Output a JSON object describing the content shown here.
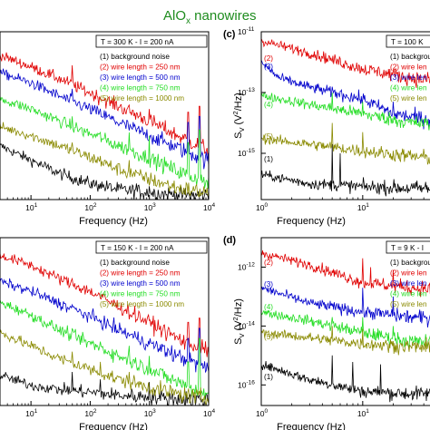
{
  "figure_title": "AlO",
  "figure_title_sub": "x",
  "figure_title_rest": " nanowires",
  "colors": {
    "title": "#1e8c1e",
    "series": [
      "#000000",
      "#e00000",
      "#0000cc",
      "#22dd22",
      "#8a8a00"
    ]
  },
  "chart_data": [
    {
      "type": "line",
      "panel": "a",
      "panel_label": "",
      "condition": "T = 300 K - I = 200 nA",
      "xlabel": "Frequency (Hz)",
      "ylabel": "",
      "log_x": true,
      "log_y": true,
      "xlim": [
        3,
        10000
      ],
      "ylim": [
        1e-15,
        1e-10
      ],
      "x_ticks": [
        {
          "v": 10,
          "l": "10",
          "e": "1"
        },
        {
          "v": 100,
          "l": "10",
          "e": "2"
        },
        {
          "v": 1000,
          "l": "10",
          "e": "3"
        },
        {
          "v": 10000,
          "l": "10",
          "e": "4"
        }
      ],
      "y_ticks": [],
      "series": [
        {
          "name": "(1) background noise",
          "points": [
            [
              3,
              4e-14
            ],
            [
              10,
              1.5e-14
            ],
            [
              30,
              6e-15
            ],
            [
              100,
              3e-15
            ],
            [
              300,
              2e-15
            ],
            [
              1000,
              1.6e-15
            ],
            [
              3000,
              1.4e-15
            ],
            [
              10000,
              1.3e-15
            ]
          ],
          "spikes": [
            [
              50,
              4e-15
            ],
            [
              150,
              3e-15
            ],
            [
              600,
              3e-15
            ],
            [
              1000,
              2.5e-15
            ]
          ]
        },
        {
          "name": "(2) wire length = 250 nm",
          "points": [
            [
              3,
              2e-11
            ],
            [
              10,
              9e-12
            ],
            [
              30,
              4e-12
            ],
            [
              100,
              1.5e-12
            ],
            [
              300,
              6e-13
            ],
            [
              1000,
              2.2e-13
            ],
            [
              3000,
              8e-14
            ],
            [
              10000,
              3e-14
            ]
          ],
          "spikes": [
            [
              50,
              1e-11
            ],
            [
              150,
              8e-13
            ],
            [
              1000,
              5e-13
            ],
            [
              4500,
              4e-13
            ],
            [
              7000,
              6e-13
            ]
          ]
        },
        {
          "name": "(3) wire length = 500 nm",
          "points": [
            [
              3,
              6e-12
            ],
            [
              10,
              3e-12
            ],
            [
              30,
              1.2e-12
            ],
            [
              100,
              5e-13
            ],
            [
              300,
              2e-13
            ],
            [
              1000,
              8e-14
            ],
            [
              3000,
              3.5e-14
            ],
            [
              10000,
              1.4e-14
            ]
          ],
          "spikes": [
            [
              50,
              2e-12
            ],
            [
              150,
              4e-13
            ],
            [
              4500,
              2e-13
            ],
            [
              7000,
              3e-13
            ]
          ]
        },
        {
          "name": "(4) wire length = 750 nm",
          "points": [
            [
              3,
              1e-12
            ],
            [
              10,
              5e-13
            ],
            [
              30,
              2.2e-13
            ],
            [
              100,
              9e-14
            ],
            [
              300,
              4e-14
            ],
            [
              1000,
              1.7e-14
            ],
            [
              3000,
              7e-15
            ],
            [
              10000,
              3e-15
            ]
          ],
          "spikes": [
            [
              50,
              3e-13
            ],
            [
              150,
              1e-13
            ],
            [
              450,
              1e-13
            ],
            [
              1000,
              8e-14
            ],
            [
              4500,
              5e-14
            ],
            [
              7000,
              1.2e-13
            ]
          ]
        },
        {
          "name": "(5) wire length = 1000 nm",
          "points": [
            [
              3,
              1.5e-13
            ],
            [
              10,
              8e-14
            ],
            [
              30,
              4e-14
            ],
            [
              100,
              1.8e-14
            ],
            [
              300,
              8e-15
            ],
            [
              1000,
              4e-15
            ],
            [
              3000,
              2.2e-15
            ],
            [
              10000,
              1.6e-15
            ]
          ],
          "spikes": [
            [
              50,
              5e-14
            ],
            [
              150,
              2e-14
            ],
            [
              450,
              1.5e-14
            ]
          ]
        }
      ]
    },
    {
      "type": "line",
      "panel": "c",
      "panel_label": "(c)",
      "condition": "T = 100 K",
      "xlabel": "Frequency (Hz)",
      "ylabel": "S",
      "ylabel_sub": "V",
      "ylabel_rest": " (V",
      "ylabel_sup": "2",
      "ylabel_end": "/Hz)",
      "log_x": true,
      "log_y": true,
      "xlim": [
        1,
        50
      ],
      "ylim": [
        3e-17,
        1e-11
      ],
      "x_ticks": [
        {
          "v": 1,
          "l": "10",
          "e": "0"
        },
        {
          "v": 10,
          "l": "10",
          "e": "1"
        }
      ],
      "y_ticks": [
        {
          "v": 1e-11,
          "l": "10",
          "e": "-11"
        },
        {
          "v": 1e-13,
          "l": "10",
          "e": "-13"
        },
        {
          "v": 1e-15,
          "l": "10",
          "e": "-15"
        }
      ],
      "series": [
        {
          "name": "(1) backgrou",
          "label": "(1)",
          "points": [
            [
              1,
              2e-16
            ],
            [
              3,
              1e-16
            ],
            [
              10,
              8e-17
            ],
            [
              30,
              7e-17
            ],
            [
              50,
              7e-17
            ]
          ],
          "spikes": [
            [
              5,
              2e-15
            ],
            [
              6,
              1e-15
            ]
          ]
        },
        {
          "name": "(2) wire len",
          "label": "(2)",
          "points": [
            [
              1,
              5e-12
            ],
            [
              3,
              2e-12
            ],
            [
              10,
              6e-13
            ],
            [
              30,
              3e-13
            ],
            [
              50,
              2.5e-13
            ]
          ],
          "spikes": [
            [
              5,
              1e-12
            ],
            [
              12,
              4e-13
            ],
            [
              20,
              5e-13
            ]
          ]
        },
        {
          "name": "(3) wire len",
          "label": "(3)",
          "points": [
            [
              1,
              1e-12
            ],
            [
              1.5,
              3e-13
            ],
            [
              3,
              1.5e-13
            ],
            [
              10,
              6e-14
            ],
            [
              20,
              2e-14
            ],
            [
              50,
              1.2e-14
            ]
          ],
          "spikes": [
            [
              5,
              1e-13
            ],
            [
              10,
              5e-14
            ],
            [
              20,
              5e-14
            ]
          ]
        },
        {
          "name": "(4) wire len",
          "label": "(4)",
          "points": [
            [
              1,
              8e-14
            ],
            [
              3,
              4e-14
            ],
            [
              10,
              2e-14
            ],
            [
              30,
              1e-14
            ],
            [
              50,
              9e-15
            ]
          ],
          "spikes": [
            [
              5,
              1e-13
            ],
            [
              10,
              5e-14
            ]
          ]
        },
        {
          "name": "(5) wire len",
          "label": "(5)",
          "points": [
            [
              1,
              3e-15
            ],
            [
              3,
              2e-15
            ],
            [
              10,
              1.2e-15
            ],
            [
              30,
              8e-16
            ],
            [
              50,
              7e-16
            ]
          ],
          "spikes": [
            [
              5,
              1e-14
            ],
            [
              10,
              5e-15
            ]
          ]
        }
      ]
    },
    {
      "type": "line",
      "panel": "b",
      "panel_label": "",
      "condition": "T = 150 K - I = 200 nA",
      "xlabel": "Frequency (Hz)",
      "ylabel": "",
      "log_x": true,
      "log_y": true,
      "xlim": [
        3,
        10000
      ],
      "ylim": [
        1e-15,
        1e-10
      ],
      "x_ticks": [
        {
          "v": 10,
          "l": "10",
          "e": "1"
        },
        {
          "v": 100,
          "l": "10",
          "e": "2"
        },
        {
          "v": 1000,
          "l": "10",
          "e": "3"
        },
        {
          "v": 10000,
          "l": "10",
          "e": "4"
        }
      ],
      "y_ticks": [],
      "series": [
        {
          "name": "(1) background noise",
          "points": [
            [
              3,
              8e-15
            ],
            [
              10,
              4e-15
            ],
            [
              30,
              3e-15
            ],
            [
              100,
              2.5e-15
            ],
            [
              300,
              2e-15
            ],
            [
              1000,
              1.8e-15
            ],
            [
              3000,
              1.6e-15
            ],
            [
              10000,
              1.5e-15
            ]
          ],
          "spikes": [
            [
              50,
              1e-14
            ],
            [
              150,
              6e-15
            ],
            [
              1000,
              5e-15
            ]
          ]
        },
        {
          "name": "(2) wire length = 250 nm",
          "points": [
            [
              3,
              3e-11
            ],
            [
              10,
              1.5e-11
            ],
            [
              30,
              6e-12
            ],
            [
              100,
              2.5e-12
            ],
            [
              300,
              9e-13
            ],
            [
              1000,
              3e-13
            ],
            [
              3000,
              1e-13
            ],
            [
              10000,
              4e-14
            ]
          ],
          "spikes": [
            [
              50,
              6e-12
            ],
            [
              150,
              1e-12
            ],
            [
              4500,
              3e-13
            ],
            [
              7000,
              4e-13
            ]
          ]
        },
        {
          "name": "(3) wire length = 500 nm",
          "points": [
            [
              3,
              5e-12
            ],
            [
              10,
              2.5e-12
            ],
            [
              30,
              1.1e-12
            ],
            [
              100,
              4.5e-13
            ],
            [
              300,
              1.8e-13
            ],
            [
              1000,
              7e-14
            ],
            [
              3000,
              3e-14
            ],
            [
              10000,
              1.2e-14
            ]
          ],
          "spikes": [
            [
              50,
              1e-12
            ],
            [
              150,
              3e-13
            ],
            [
              4500,
              1e-13
            ],
            [
              7000,
              2e-13
            ]
          ]
        },
        {
          "name": "(4) wire length = 750 nm",
          "points": [
            [
              3,
              1.2e-12
            ],
            [
              10,
              5e-13
            ],
            [
              30,
              1.8e-13
            ],
            [
              100,
              7e-14
            ],
            [
              300,
              3e-14
            ],
            [
              1000,
              1.2e-14
            ],
            [
              3000,
              5e-15
            ],
            [
              10000,
              2e-15
            ]
          ],
          "spikes": [
            [
              50,
              2e-13
            ],
            [
              150,
              8e-14
            ],
            [
              450,
              6e-14
            ],
            [
              1000,
              3e-14
            ],
            [
              4500,
              2e-14
            ],
            [
              7000,
              1e-13
            ]
          ]
        },
        {
          "name": "(5) wire length = 1000 nm",
          "points": [
            [
              3,
              1.5e-13
            ],
            [
              10,
              6e-14
            ],
            [
              30,
              2.5e-14
            ],
            [
              100,
              1.2e-14
            ],
            [
              300,
              6e-15
            ],
            [
              1000,
              3.5e-15
            ],
            [
              3000,
              2.2e-15
            ],
            [
              10000,
              1.6e-15
            ]
          ],
          "spikes": [
            [
              50,
              4e-14
            ],
            [
              150,
              2e-14
            ],
            [
              450,
              1e-14
            ]
          ]
        }
      ]
    },
    {
      "type": "line",
      "panel": "d",
      "panel_label": "(d)",
      "condition": "T = 9 K - I",
      "xlabel": "Frequency (Hz)",
      "ylabel": "S",
      "ylabel_sub": "V",
      "ylabel_rest": " (V",
      "ylabel_sup": "2",
      "ylabel_end": "/Hz)",
      "log_x": true,
      "log_y": true,
      "xlim": [
        1,
        50
      ],
      "ylim": [
        2e-17,
        1e-11
      ],
      "x_ticks": [
        {
          "v": 1,
          "l": "10",
          "e": "0"
        },
        {
          "v": 10,
          "l": "10",
          "e": "1"
        }
      ],
      "y_ticks": [
        {
          "v": 1e-12,
          "l": "10",
          "e": "-12"
        },
        {
          "v": 1e-14,
          "l": "10",
          "e": "-14"
        },
        {
          "v": 1e-16,
          "l": "10",
          "e": "-16"
        }
      ],
      "series": [
        {
          "name": "(1) backgrou",
          "label": "(1)",
          "points": [
            [
              1,
              5e-16
            ],
            [
              3,
              1.5e-16
            ],
            [
              10,
              6e-17
            ],
            [
              30,
              5e-17
            ],
            [
              50,
              5e-17
            ]
          ],
          "spikes": [
            [
              5,
              1e-15
            ],
            [
              8,
              6e-16
            ],
            [
              15,
              5e-16
            ]
          ]
        },
        {
          "name": "(2) wire len",
          "label": "(2)",
          "points": [
            [
              1,
              3e-12
            ],
            [
              3,
              1.2e-12
            ],
            [
              10,
              3e-13
            ],
            [
              30,
              2e-13
            ],
            [
              50,
              1.8e-13
            ]
          ],
          "spikes": [
            [
              10,
              2e-12
            ],
            [
              12,
              1e-12
            ],
            [
              20,
              8e-13
            ]
          ]
        },
        {
          "name": "(3) wire len",
          "label": "(3)",
          "points": [
            [
              1,
              2e-13
            ],
            [
              3,
              6e-14
            ],
            [
              10,
              3e-14
            ],
            [
              30,
              2e-14
            ],
            [
              50,
              1.8e-14
            ]
          ],
          "spikes": [
            [
              10,
              2e-13
            ],
            [
              20,
              1e-13
            ]
          ]
        },
        {
          "name": "(4) wire len",
          "label": "(4)",
          "points": [
            [
              1,
              3e-14
            ],
            [
              3,
              1.5e-14
            ],
            [
              10,
              6e-15
            ],
            [
              30,
              3e-15
            ],
            [
              50,
              2.8e-15
            ]
          ],
          "spikes": [
            [
              5,
              2e-14
            ],
            [
              10,
              2e-14
            ],
            [
              20,
              1e-14
            ]
          ]
        },
        {
          "name": "(5) wire len",
          "label": "(5)",
          "points": [
            [
              1,
              6e-15
            ],
            [
              3,
              4e-15
            ],
            [
              10,
              2.5e-15
            ],
            [
              30,
              2e-15
            ],
            [
              50,
              1.8e-15
            ]
          ],
          "spikes": [
            [
              5,
              1e-14
            ],
            [
              10,
              8e-15
            ]
          ]
        }
      ]
    }
  ]
}
